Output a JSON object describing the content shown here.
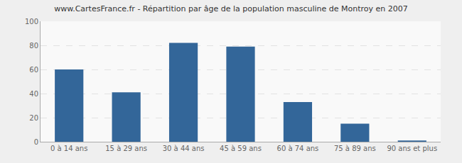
{
  "chart_data": {
    "type": "bar",
    "title": "www.CartesFrance.fr - Répartition par âge de la population masculine de Montroy en 2007",
    "categories": [
      "0 à 14 ans",
      "15 à 29 ans",
      "30 à 44 ans",
      "45 à 59 ans",
      "60 à 74 ans",
      "75 à 89 ans",
      "90 ans et plus"
    ],
    "values": [
      60,
      41,
      82,
      79,
      33,
      15,
      1
    ],
    "color": "#336699",
    "ylim": [
      0,
      100
    ],
    "yticks": [
      0,
      20,
      40,
      60,
      80,
      100
    ],
    "grid": true
  }
}
